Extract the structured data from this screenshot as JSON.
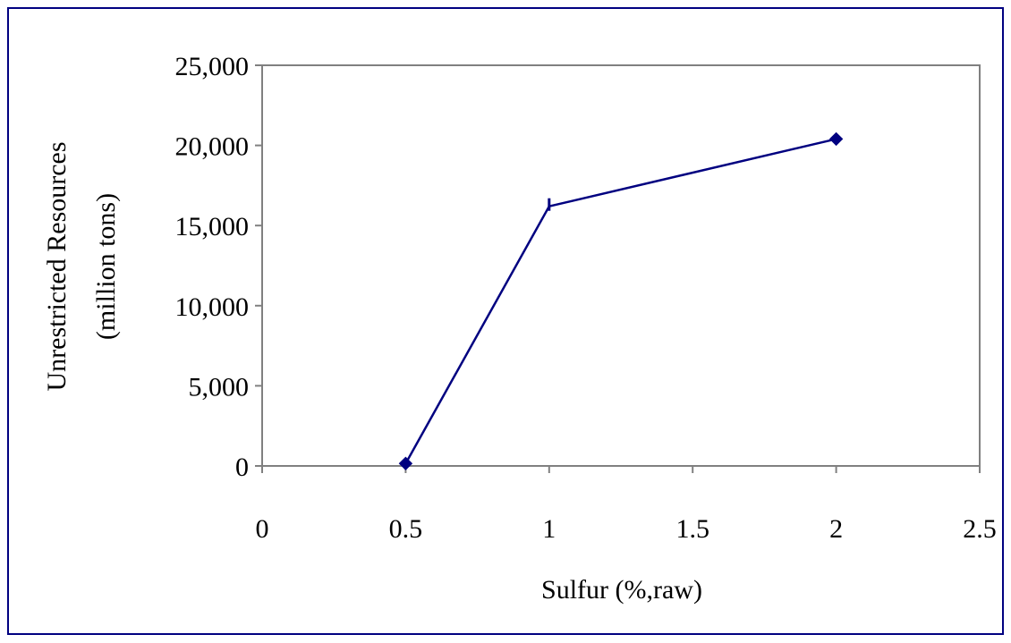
{
  "chart_data": {
    "type": "line",
    "title": "",
    "xlabel": "Sulfur (%,raw)",
    "ylabel_lines": [
      "Unrestricted Resources",
      "(million tons)"
    ],
    "xlim": [
      0,
      2.5
    ],
    "ylim": [
      0,
      25000
    ],
    "x_ticks": [
      "0",
      "0.5",
      "1",
      "1.5",
      "2",
      "2.5"
    ],
    "y_ticks": [
      "0",
      "5,000",
      "10,000",
      "15,000",
      "20,000",
      "25,000"
    ],
    "grid": false,
    "legend": "none",
    "series": [
      {
        "color": "#000080",
        "marker": "diamond",
        "points": [
          {
            "x": 0.5,
            "y": 150,
            "marker": "diamond"
          },
          {
            "x": 1.0,
            "y": 16200,
            "marker": "dash"
          },
          {
            "x": 2.0,
            "y": 20400,
            "marker": "diamond"
          }
        ]
      }
    ]
  },
  "colors": {
    "line": "#000080",
    "axis": "#808080",
    "frame": "#000080"
  }
}
